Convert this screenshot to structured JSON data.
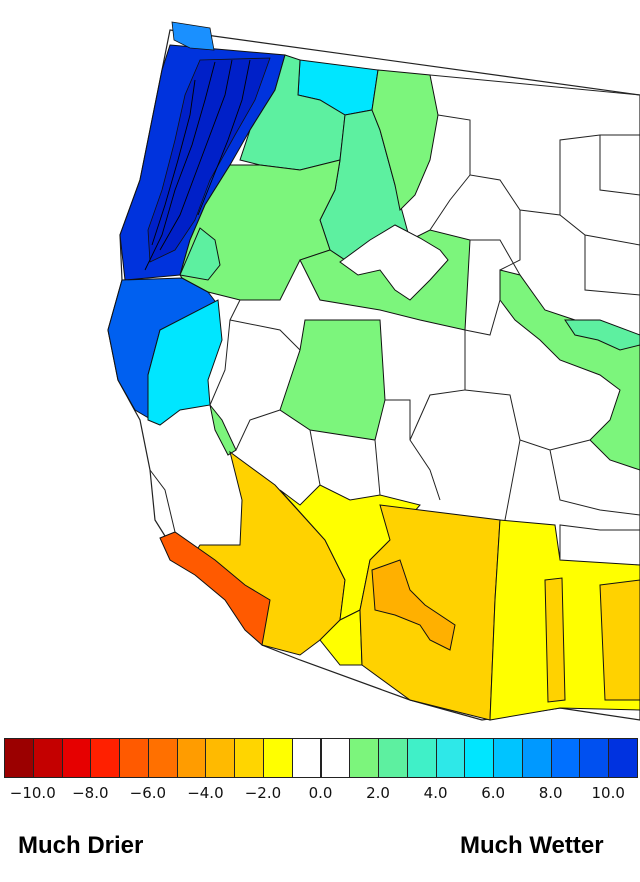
{
  "legend": {
    "colors": [
      "#9b0000",
      "#c40000",
      "#e60000",
      "#ff2000",
      "#ff5a00",
      "#ff7000",
      "#ff9c00",
      "#ffba00",
      "#ffd500",
      "#ffff00",
      "#ffffff",
      "#ffffff",
      "#7cf57c",
      "#5df0a0",
      "#40f0c8",
      "#2ee8e8",
      "#00e6ff",
      "#00c4ff",
      "#0099ff",
      "#0070ff",
      "#0050f0",
      "#0032e0"
    ],
    "ticks": [
      "−10.0",
      "−8.0",
      "−6.0",
      "−4.0",
      "−2.0",
      "0.0",
      "2.0",
      "4.0",
      "6.0",
      "8.0",
      "10.0"
    ]
  },
  "labels": {
    "drier": "Much Drier",
    "wetter": "Much Wetter"
  },
  "map_colors": {
    "much_wetter": "#0033dd",
    "wetter_blue": "#0060f0",
    "cyan": "#00e6ff",
    "aqua": "#3cf0c8",
    "green": "#7cf57c",
    "neutral": "#ffffff",
    "yellow": "#ffff00",
    "gold": "#ffd200",
    "orange": "#ffb000",
    "red_orange": "#ff5a00"
  }
}
